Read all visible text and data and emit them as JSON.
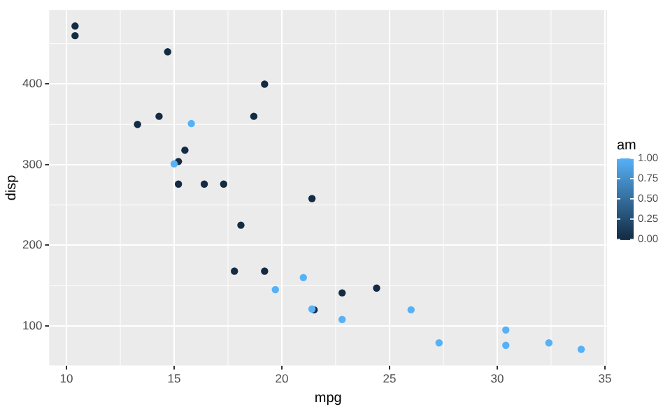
{
  "chart_data": {
    "type": "scatter",
    "xlabel": "mpg",
    "ylabel": "disp",
    "legend_title": "am",
    "x": [
      21.0,
      22.8,
      21.4,
      18.7,
      18.1,
      14.3,
      24.4,
      22.8,
      19.2,
      17.8,
      16.4,
      17.3,
      15.2,
      10.4,
      10.4,
      14.7,
      32.4,
      30.4,
      33.9,
      21.5,
      15.5,
      15.2,
      13.3,
      19.2,
      27.3,
      26.0,
      30.4,
      15.8,
      19.7,
      15.0,
      21.4
    ],
    "values": [
      160,
      108,
      258,
      360,
      225,
      360,
      147,
      141,
      168,
      168,
      276,
      276,
      276,
      472,
      460,
      440,
      79,
      76,
      71,
      120,
      318,
      304,
      350,
      400,
      79,
      120,
      95,
      351,
      145,
      301,
      121
    ],
    "cvalues": [
      1,
      1,
      0,
      0,
      0,
      0,
      0,
      0,
      0,
      0,
      0,
      0,
      0,
      0,
      0,
      0,
      1,
      1,
      1,
      0,
      0,
      0,
      0,
      0,
      1,
      1,
      1,
      1,
      1,
      1,
      1
    ],
    "colors": [
      "#56b1f7",
      "#56b1f7",
      "#132b43",
      "#132b43",
      "#132b43",
      "#132b43",
      "#132b43",
      "#132b43",
      "#132b43",
      "#132b43",
      "#132b43",
      "#132b43",
      "#132b43",
      "#132b43",
      "#132b43",
      "#132b43",
      "#56b1f7",
      "#56b1f7",
      "#56b1f7",
      "#132b43",
      "#132b43",
      "#132b43",
      "#132b43",
      "#132b43",
      "#56b1f7",
      "#56b1f7",
      "#56b1f7",
      "#56b1f7",
      "#56b1f7",
      "#56b1f7",
      "#56b1f7"
    ],
    "xlim": [
      9.2,
      35.1
    ],
    "xticks": [
      10,
      15,
      20,
      25,
      30,
      35
    ],
    "ylim": [
      51,
      492
    ],
    "yticks": [
      100,
      200,
      300,
      400
    ],
    "clim": [
      0,
      1
    ],
    "cticks": [
      {
        "value": 0,
        "label": "0.00"
      },
      {
        "value": 0.25,
        "label": "0.25"
      },
      {
        "value": 0.5,
        "label": "0.50"
      },
      {
        "value": 0.75,
        "label": "0.75"
      },
      {
        "value": 1,
        "label": "1.00"
      }
    ],
    "grid": true,
    "marker": "circle"
  }
}
